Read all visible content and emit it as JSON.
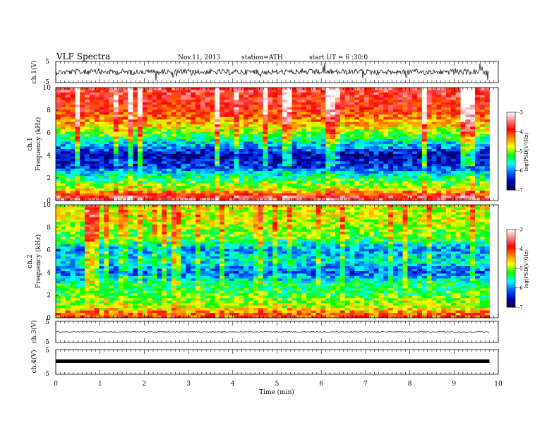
{
  "header": {
    "title": "VLF  Spectra",
    "date": "Nov.11, 2013",
    "station": "station=ATH",
    "start": "start  UT =   6 :30:0"
  },
  "chart_data": [
    {
      "type": "line",
      "name": "ch1-waveform",
      "ylabel": "ch.1(V)",
      "ylim": [
        -5,
        5
      ],
      "yticks": [
        "5",
        "-5"
      ],
      "x_range_min": [
        0,
        9.8
      ]
    },
    {
      "type": "heatmap",
      "name": "ch1-spectrogram",
      "ylabel": "ch.1\nFrequency  (kHz)",
      "ylabel_lines": [
        "ch.1",
        "Frequency  (kHz)"
      ],
      "ylim": [
        0,
        10
      ],
      "yticks": [
        "0",
        "2",
        "4",
        "6",
        "8",
        "10"
      ],
      "x_range_min": [
        0,
        9.8
      ],
      "colorbar": {
        "label": "log(PSD(V²/Hz)",
        "range": [
          -7,
          -3
        ],
        "ticks": [
          "-3",
          "-4",
          "-5",
          "-6",
          "-7"
        ],
        "colors": [
          "#ffffff",
          "#ff8080",
          "#ff0000",
          "#ff8800",
          "#ffff00",
          "#00ff00",
          "#00ffff",
          "#0060ff",
          "#0000c0",
          "#000040"
        ]
      },
      "intensity_profile": [
        {
          "freq_khz": 0.3,
          "log_psd": -3.6
        },
        {
          "freq_khz": 1.0,
          "log_psd": -4.8
        },
        {
          "freq_khz": 2.0,
          "log_psd": -5.4
        },
        {
          "freq_khz": 3.0,
          "log_psd": -6.3
        },
        {
          "freq_khz": 4.0,
          "log_psd": -6.6
        },
        {
          "freq_khz": 5.0,
          "log_psd": -5.8
        },
        {
          "freq_khz": 6.0,
          "log_psd": -5.0
        },
        {
          "freq_khz": 7.0,
          "log_psd": -4.4
        },
        {
          "freq_khz": 8.0,
          "log_psd": -4.0
        },
        {
          "freq_khz": 9.0,
          "log_psd": -3.8
        },
        {
          "freq_khz": 10.0,
          "log_psd": -3.7
        }
      ]
    },
    {
      "type": "heatmap",
      "name": "ch2-spectrogram",
      "ylabel": "ch.2\nFrequency  (kHz)",
      "ylabel_lines": [
        "ch.2",
        "Frequency  (kHz)"
      ],
      "ylim": [
        0,
        10
      ],
      "yticks": [
        "0",
        "2",
        "4",
        "6",
        "8",
        "10"
      ],
      "x_range_min": [
        0,
        9.8
      ],
      "colorbar": {
        "label": "log(PSD(V²/Hz)",
        "range": [
          -7,
          -3
        ],
        "ticks": [
          "-3",
          "-4",
          "-5",
          "-6",
          "-7"
        ],
        "colors": [
          "#ffffff",
          "#ff8080",
          "#ff0000",
          "#ff8800",
          "#ffff00",
          "#00ff00",
          "#00ffff",
          "#0060ff",
          "#0000c0",
          "#000040"
        ]
      },
      "intensity_profile": [
        {
          "freq_khz": 0.3,
          "log_psd": -4.2
        },
        {
          "freq_khz": 1.0,
          "log_psd": -4.9
        },
        {
          "freq_khz": 2.0,
          "log_psd": -5.2
        },
        {
          "freq_khz": 3.0,
          "log_psd": -5.4
        },
        {
          "freq_khz": 4.0,
          "log_psd": -6.2
        },
        {
          "freq_khz": 5.0,
          "log_psd": -5.6
        },
        {
          "freq_khz": 6.0,
          "log_psd": -6.0
        },
        {
          "freq_khz": 7.0,
          "log_psd": -5.2
        },
        {
          "freq_khz": 8.0,
          "log_psd": -5.0
        },
        {
          "freq_khz": 9.0,
          "log_psd": -4.8
        },
        {
          "freq_khz": 10.0,
          "log_psd": -4.8
        }
      ]
    },
    {
      "type": "line",
      "name": "ch3-waveform",
      "ylabel": "ch.3(V)",
      "ylim": [
        -5,
        5
      ],
      "yticks": [
        "5",
        "-5"
      ],
      "x_range_min": [
        0,
        9.8
      ]
    },
    {
      "type": "line",
      "name": "ch4-waveform",
      "ylabel": "ch.4(V)",
      "ylim": [
        -5,
        5
      ],
      "yticks": [
        "5",
        "-5"
      ],
      "x_range_min": [
        0,
        9.8
      ],
      "xlabel": "Time  (min)",
      "xlim": [
        0,
        10
      ],
      "xticks": [
        "0",
        "1",
        "2",
        "3",
        "4",
        "5",
        "6",
        "7",
        "8",
        "9",
        "10"
      ]
    }
  ]
}
